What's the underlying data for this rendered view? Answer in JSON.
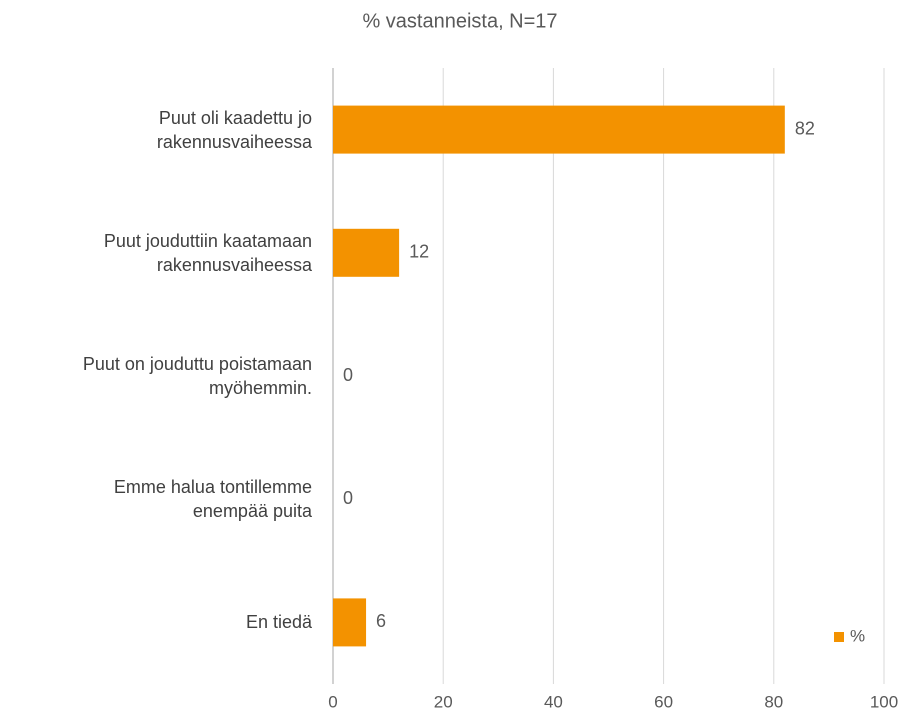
{
  "chart_data": {
    "type": "bar",
    "orientation": "horizontal",
    "title": "% vastanneista, N=17",
    "categories": [
      "Puut oli kaadettu jo\nrakennusvaiheessa",
      "Puut jouduttiin kaatamaan\nrakennusvaiheessa",
      "Puut on jouduttu poistamaan\nmyöhemmin.",
      "Emme halua tontillemme\nenempää puita",
      "En tiedä"
    ],
    "series": [
      {
        "name": "%",
        "color": "#f39200",
        "values": [
          82,
          12,
          0,
          0,
          6
        ]
      }
    ],
    "xlim": [
      0,
      100
    ],
    "xticks": [
      0,
      20,
      40,
      60,
      80,
      100
    ],
    "grid": true,
    "legend": "lower right"
  }
}
